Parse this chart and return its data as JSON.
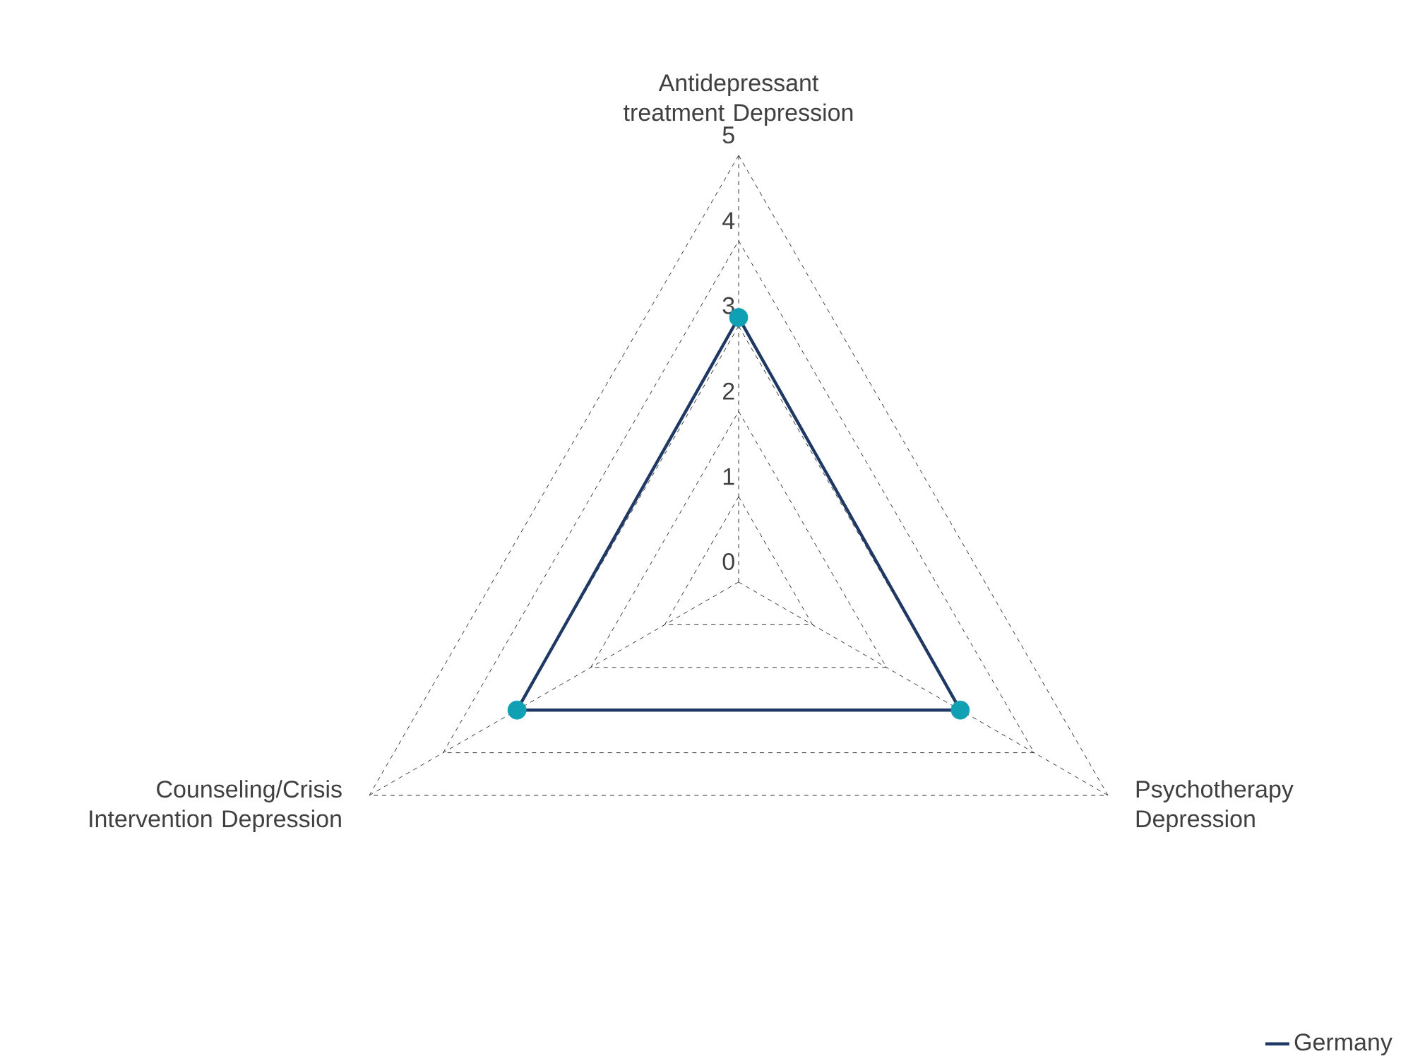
{
  "chart_data": {
    "type": "radar",
    "categories": [
      "Antidepressant treatment Depression",
      "Psychotherapy Depression",
      "Counseling/Crisis Intervention Depression"
    ],
    "series": [
      {
        "name": "Germany",
        "color": "#1f3864",
        "values": [
          3.1,
          3.0,
          3.0
        ]
      }
    ],
    "ylim": [
      0,
      5
    ],
    "yticks": [
      0,
      1,
      2,
      3,
      4,
      5
    ],
    "grid": true,
    "legend": "bottom right",
    "marker": "circle"
  }
}
